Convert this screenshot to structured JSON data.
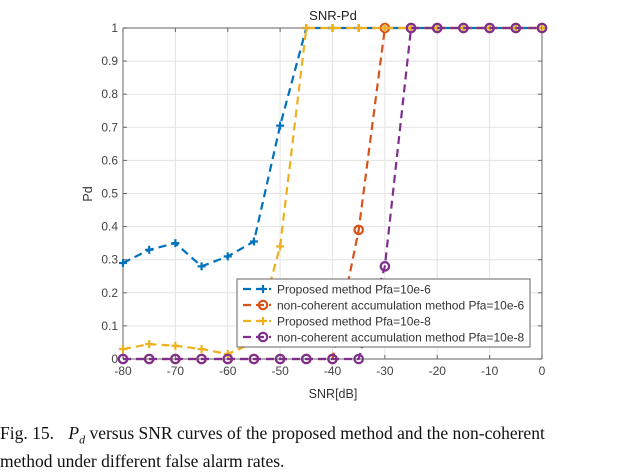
{
  "chart_data": {
    "type": "line",
    "title": "SNR-Pd",
    "xlabel": "SNR[dB]",
    "ylabel": "Pd",
    "xlim": [
      -80,
      0
    ],
    "ylim": [
      0,
      1
    ],
    "xticks": [
      -80,
      -70,
      -60,
      -50,
      -40,
      -30,
      -20,
      -10,
      0
    ],
    "yticks": [
      0,
      0.1,
      0.2,
      0.3,
      0.4,
      0.5,
      0.6,
      0.7,
      0.8,
      0.9,
      1
    ],
    "ytick_labels": [
      "0",
      "0.1",
      "0.2",
      "0.3",
      "0.4",
      "0.5",
      "0.6",
      "0.7",
      "0.8",
      "0.9",
      "1"
    ],
    "grid": true,
    "legend_position": "bottom-right",
    "x": [
      -80,
      -75,
      -70,
      -65,
      -60,
      -55,
      -50,
      -45,
      -40,
      -35,
      -30,
      -25,
      -20,
      -15,
      -10,
      -5,
      0
    ],
    "series": [
      {
        "name": "Proposed method Pfa=10e-6",
        "color": "#0072BD",
        "marker": "plus",
        "values": [
          0.29,
          0.33,
          0.35,
          0.28,
          0.31,
          0.355,
          0.705,
          1,
          1,
          1,
          1,
          1,
          1,
          1,
          1,
          1,
          1
        ]
      },
      {
        "name": "non-coherent accumulation method Pfa=10e-6",
        "color": "#D95319",
        "marker": "circle",
        "values": [
          0,
          0,
          0,
          0,
          0,
          0,
          0,
          0,
          0,
          0.39,
          1,
          1,
          1,
          1,
          1,
          1,
          1
        ]
      },
      {
        "name": "Proposed method Pfa=10e-8",
        "color": "#EDB120",
        "marker": "plus",
        "values": [
          0.03,
          0.045,
          0.04,
          0.03,
          0.015,
          0.05,
          0.34,
          1,
          1,
          1,
          1,
          1,
          1,
          1,
          1,
          1,
          1
        ]
      },
      {
        "name": "non-coherent accumulation method Pfa=10e-8",
        "color": "#7E2F8E",
        "marker": "circle",
        "values": [
          0,
          0,
          0,
          0,
          0,
          0,
          0,
          0,
          0,
          0,
          0.28,
          1,
          1,
          1,
          1,
          1,
          1
        ]
      }
    ]
  },
  "caption": {
    "fig_number": "Fig. 15.",
    "pd_symbol": "P",
    "pd_subscript": "d",
    "text_line1": " versus SNR curves of the proposed method and the non-coherent",
    "text_line2": "method under different false alarm rates."
  }
}
